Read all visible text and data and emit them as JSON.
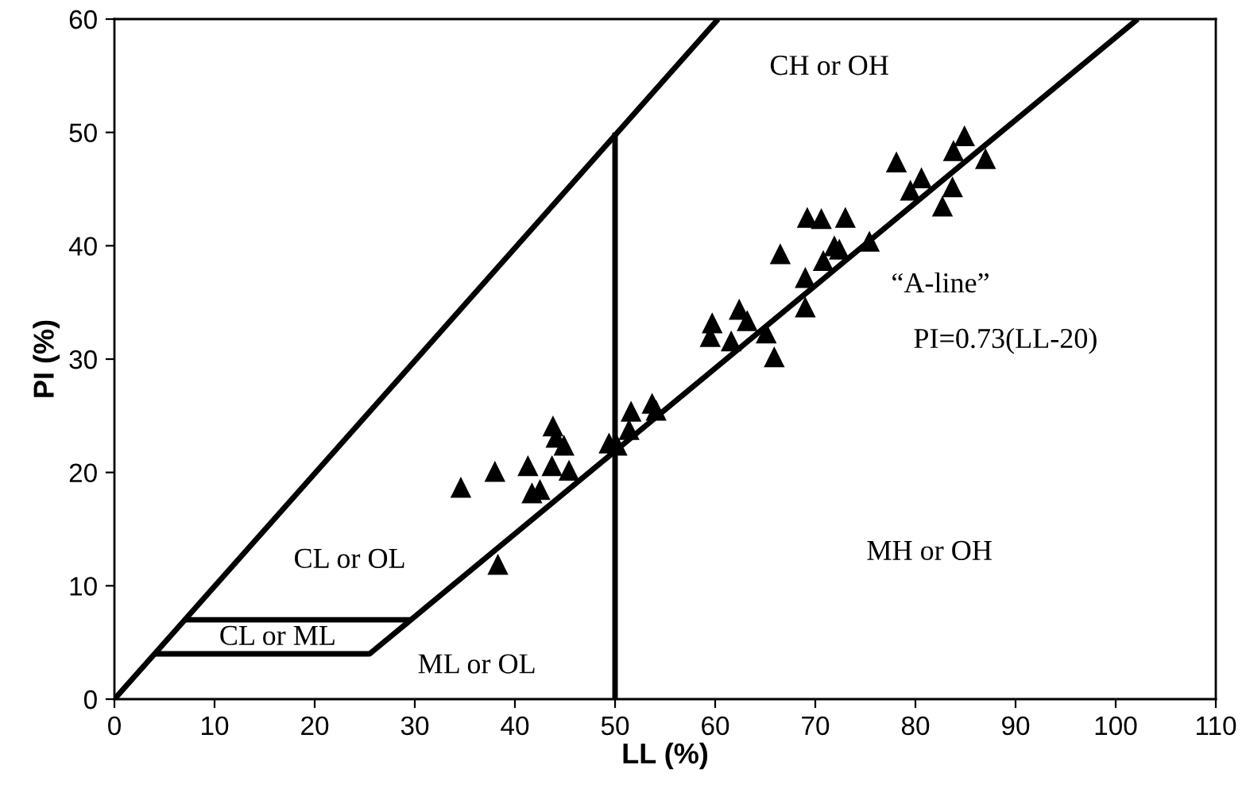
{
  "chart_data": {
    "type": "scatter",
    "xlabel": "LL (%)",
    "ylabel": "PI (%)",
    "xlim": [
      0,
      110
    ],
    "xticks": [
      0,
      10,
      20,
      30,
      40,
      50,
      60,
      70,
      80,
      90,
      100,
      110
    ],
    "ylim": [
      0,
      60
    ],
    "yticks": [
      0,
      10,
      20,
      30,
      40,
      50,
      60
    ],
    "grid": false,
    "series": [
      {
        "marker": "triangle",
        "color": "#000000",
        "x": [
          34.6,
          38.0,
          38.3,
          41.3,
          43.8,
          44.1,
          44.9,
          43.7,
          45.4,
          41.7,
          42.5,
          49.4,
          50.2,
          51.6,
          51.4,
          53.7,
          54.1,
          66.5,
          70.8,
          72.4,
          75.4,
          69.0,
          69.0,
          62.4,
          63.2,
          59.7,
          59.5,
          61.6,
          65.1,
          65.9,
          78.1,
          84.9,
          83.8,
          87.0,
          80.6,
          79.5,
          83.7,
          82.7,
          69.2,
          70.6,
          73.0,
          71.9
        ],
        "values": [
          18.7,
          20.1,
          11.9,
          20.6,
          24.1,
          23.1,
          22.4,
          20.6,
          20.2,
          18.2,
          18.5,
          22.6,
          22.4,
          25.4,
          23.8,
          26.1,
          25.5,
          39.3,
          38.7,
          39.7,
          40.4,
          37.2,
          34.6,
          34.4,
          33.4,
          33.2,
          32.0,
          31.6,
          32.3,
          30.2,
          47.4,
          49.7,
          48.4,
          47.7,
          46.0,
          44.9,
          45.2,
          43.5,
          42.5,
          42.4,
          42.5,
          40.0
        ]
      },
      {
        "type": "line",
        "color": "#000000",
        "x": [
          0,
          60.3
        ],
        "values": [
          0,
          60
        ]
      },
      {
        "type": "line",
        "color": "#000000",
        "x": [
          50,
          50
        ],
        "values": [
          0,
          50
        ]
      },
      {
        "type": "line",
        "color": "#000000",
        "x": [
          4,
          25.5,
          102.2
        ],
        "values": [
          4,
          4,
          60
        ]
      },
      {
        "type": "line",
        "color": "#000000",
        "x": [
          7,
          29.6
        ],
        "values": [
          7,
          7
        ]
      }
    ],
    "annotations": [
      "CH or OH",
      "CL or OL",
      "CL or ML",
      "ML or OL",
      "MH or OH",
      "“A-line”",
      "PI=0.73(LL-20)"
    ]
  }
}
